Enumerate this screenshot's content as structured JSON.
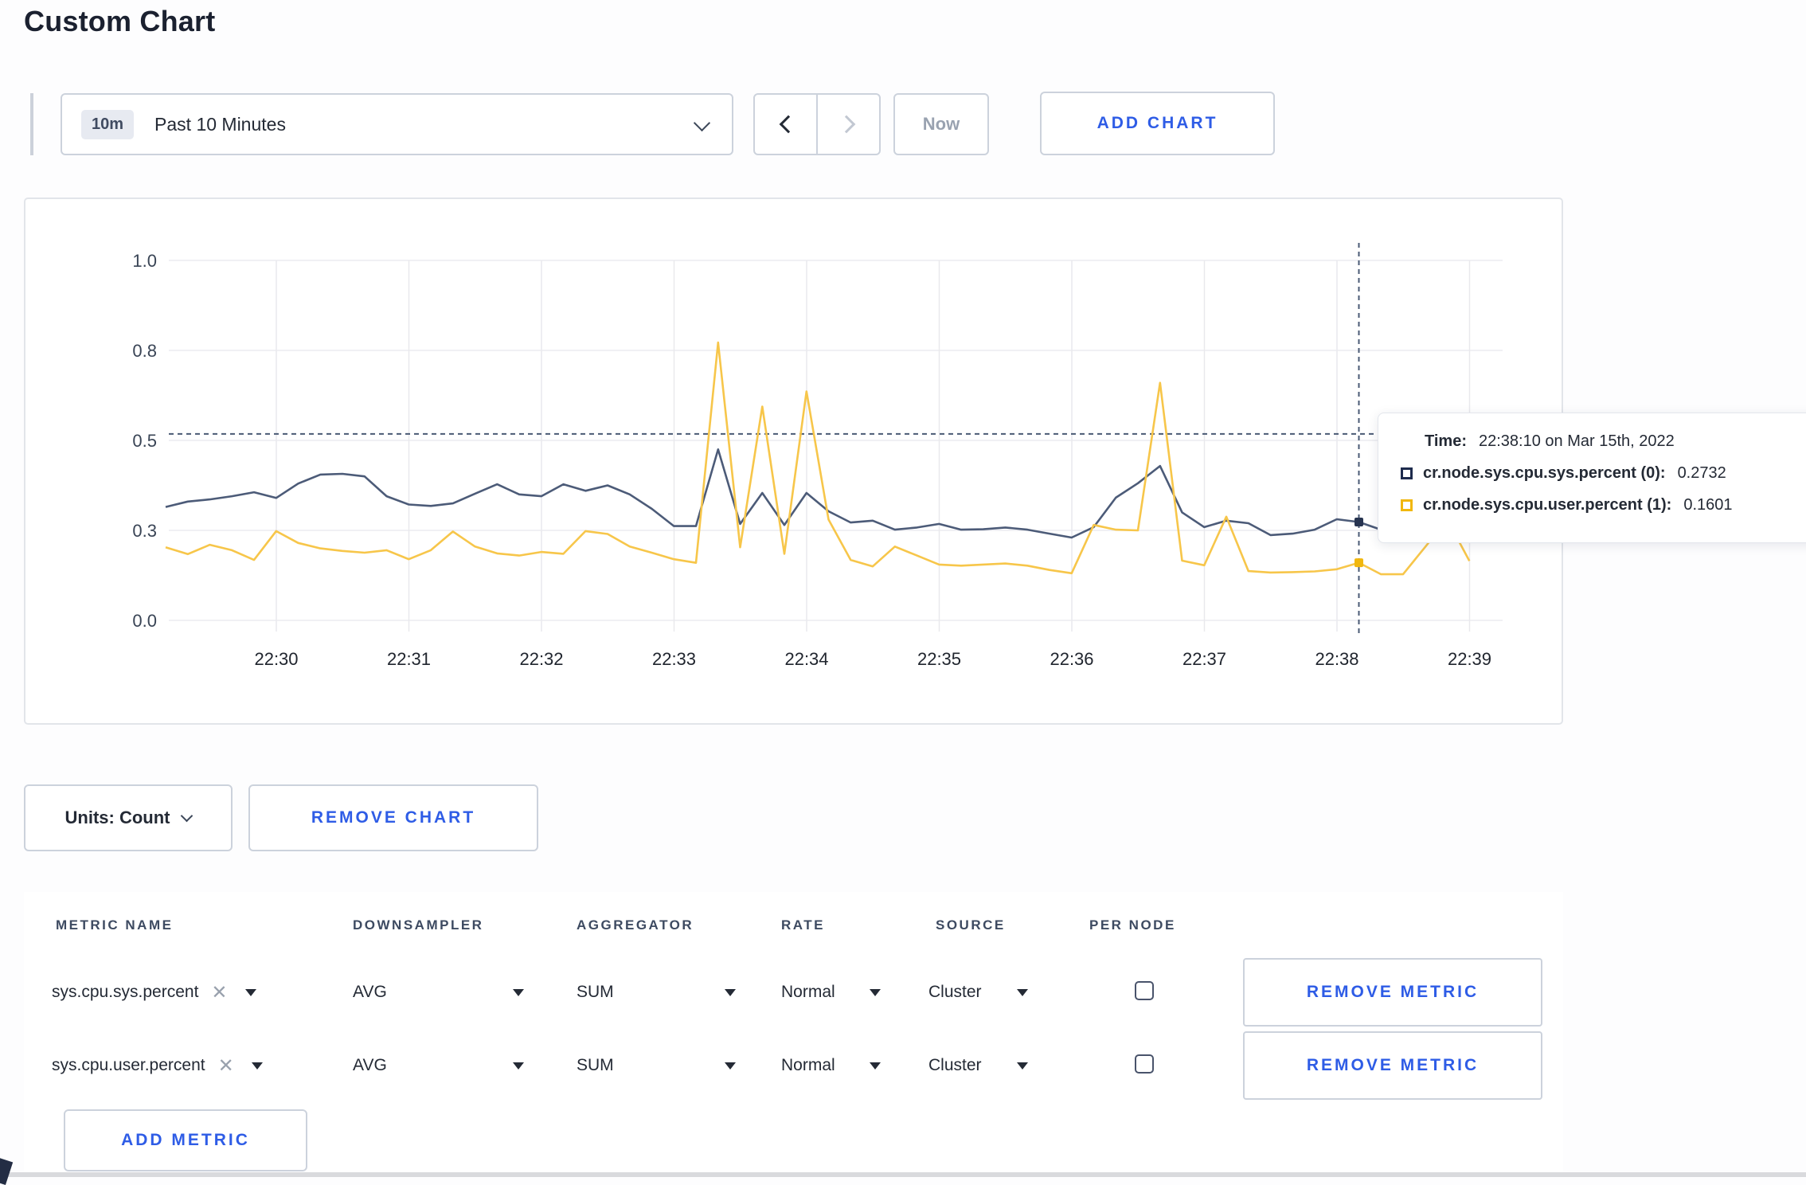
{
  "page_title": "Custom Chart",
  "toolbar": {
    "time_range_badge": "10m",
    "time_range_label": "Past 10 Minutes",
    "now_label": "Now",
    "add_chart_label": "ADD CHART"
  },
  "accent_color": "#2e5ce6",
  "chart_data": {
    "type": "line",
    "title": "",
    "xlabel": "",
    "ylabel": "",
    "ylim": [
      0,
      1
    ],
    "grid": true,
    "legend_position": "none",
    "y_tick_values": [
      0,
      0.25,
      0.5,
      0.75,
      1
    ],
    "y_tick_labels": [
      "0.0",
      "0.3",
      "0.5",
      "0.8",
      "1.0"
    ],
    "x_tick_labels": [
      "22:30",
      "22:31",
      "22:32",
      "22:33",
      "22:34",
      "22:35",
      "22:36",
      "22:37",
      "22:38",
      "22:39"
    ],
    "x": [
      "22:29:10",
      "22:29:20",
      "22:29:30",
      "22:29:40",
      "22:29:50",
      "22:30:00",
      "22:30:10",
      "22:30:20",
      "22:30:30",
      "22:30:40",
      "22:30:50",
      "22:31:00",
      "22:31:10",
      "22:31:20",
      "22:31:30",
      "22:31:40",
      "22:31:50",
      "22:32:00",
      "22:32:10",
      "22:32:20",
      "22:32:30",
      "22:32:40",
      "22:32:50",
      "22:33:00",
      "22:33:10",
      "22:33:20",
      "22:33:30",
      "22:33:40",
      "22:33:50",
      "22:34:00",
      "22:34:10",
      "22:34:20",
      "22:34:30",
      "22:34:40",
      "22:34:50",
      "22:35:00",
      "22:35:10",
      "22:35:20",
      "22:35:30",
      "22:35:40",
      "22:35:50",
      "22:36:00",
      "22:36:10",
      "22:36:20",
      "22:36:30",
      "22:36:40",
      "22:36:50",
      "22:37:00",
      "22:37:10",
      "22:37:20",
      "22:37:30",
      "22:37:40",
      "22:37:50",
      "22:38:00",
      "22:38:10",
      "22:38:20",
      "22:38:30",
      "22:38:40",
      "22:38:50",
      "22:39:00"
    ],
    "series": [
      {
        "name": "cr.node.sys.cpu.sys.percent",
        "line_color": "#4c5b78",
        "marker_color": "#273450",
        "values": [
          0.315,
          0.33,
          0.336,
          0.345,
          0.356,
          0.34,
          0.38,
          0.405,
          0.407,
          0.4,
          0.345,
          0.322,
          0.318,
          0.325,
          0.352,
          0.378,
          0.35,
          0.345,
          0.378,
          0.36,
          0.375,
          0.35,
          0.31,
          0.262,
          0.262,
          0.475,
          0.268,
          0.354,
          0.265,
          0.354,
          0.303,
          0.272,
          0.277,
          0.252,
          0.258,
          0.268,
          0.252,
          0.253,
          0.258,
          0.252,
          0.241,
          0.23,
          0.259,
          0.341,
          0.381,
          0.429,
          0.3,
          0.259,
          0.277,
          0.27,
          0.237,
          0.241,
          0.252,
          0.281,
          0.2732,
          0.252,
          0.26,
          0.29,
          0.3,
          0.295
        ]
      },
      {
        "name": "cr.node.sys.cpu.user.percent",
        "line_color": "#f7c64a",
        "marker_color": "#f1b70d",
        "values": [
          0.203,
          0.184,
          0.21,
          0.195,
          0.168,
          0.248,
          0.215,
          0.2,
          0.193,
          0.188,
          0.195,
          0.17,
          0.195,
          0.247,
          0.205,
          0.186,
          0.18,
          0.19,
          0.185,
          0.248,
          0.24,
          0.205,
          0.188,
          0.17,
          0.16,
          0.772,
          0.203,
          0.594,
          0.185,
          0.636,
          0.28,
          0.168,
          0.15,
          0.205,
          0.18,
          0.155,
          0.152,
          0.155,
          0.158,
          0.152,
          0.14,
          0.131,
          0.265,
          0.252,
          0.25,
          0.66,
          0.166,
          0.153,
          0.288,
          0.137,
          0.133,
          0.134,
          0.136,
          0.142,
          0.1601,
          0.128,
          0.128,
          0.204,
          0.28,
          0.165
        ]
      }
    ],
    "crosshair": {
      "time": "22:38:10",
      "hover_value": 0.518
    }
  },
  "tooltip": {
    "time_label": "Time:",
    "time_value": "22:38:10 on Mar 15th, 2022",
    "series": [
      {
        "label": "cr.node.sys.cpu.sys.percent (0):",
        "value": "0.2732",
        "color": "#1e2b4d"
      },
      {
        "label": "cr.node.sys.cpu.user.percent (1):",
        "value": "0.1601",
        "color": "#f1b70d"
      }
    ]
  },
  "chart_footer": {
    "units_label": "Units: Count",
    "remove_chart_label": "REMOVE CHART"
  },
  "metrics_table": {
    "headers": [
      "METRIC NAME",
      "DOWNSAMPLER",
      "AGGREGATOR",
      "RATE",
      "SOURCE",
      "PER NODE"
    ],
    "rows": [
      {
        "metric": "sys.cpu.sys.percent",
        "downsampler": "AVG",
        "aggregator": "SUM",
        "rate": "Normal",
        "source": "Cluster",
        "per_node_checked": false,
        "remove_label": "REMOVE METRIC"
      },
      {
        "metric": "sys.cpu.user.percent",
        "downsampler": "AVG",
        "aggregator": "SUM",
        "rate": "Normal",
        "source": "Cluster",
        "per_node_checked": false,
        "remove_label": "REMOVE METRIC"
      }
    ],
    "add_metric_label": "ADD METRIC"
  }
}
